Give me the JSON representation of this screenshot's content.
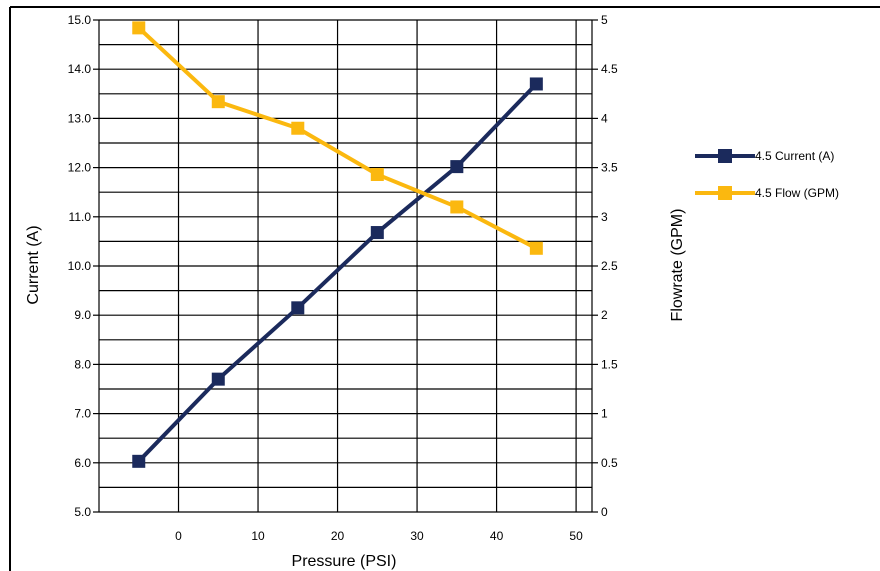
{
  "chart_data": {
    "type": "line",
    "title": "",
    "xlabel": "Pressure (PSI)",
    "ylabel": "Current (A)",
    "y2label": "Flowrate (GPM)",
    "xlim": [
      -10,
      52
    ],
    "ylim": [
      5.0,
      15.0
    ],
    "y2lim": [
      0,
      5
    ],
    "x_ticks": [
      "0",
      "10",
      "20",
      "30",
      "40",
      "50"
    ],
    "y_ticks": [
      "5.0",
      "6.0",
      "7.0",
      "8.0",
      "9.0",
      "10.0",
      "11.0",
      "12.0",
      "13.0",
      "14.0",
      "15.0"
    ],
    "y2_ticks": [
      "0",
      "0.5",
      "1",
      "1.5",
      "2",
      "2.5",
      "3",
      "3.5",
      "4",
      "4.5",
      "5"
    ],
    "grid": true,
    "legend_position": "right",
    "series": [
      {
        "name": "4.5 Current (A)",
        "axis": "left",
        "color": "#1b2a5c",
        "marker": "square",
        "x": [
          -5,
          5,
          15,
          25,
          35,
          45
        ],
        "y": [
          6.03,
          7.7,
          9.15,
          10.68,
          12.02,
          13.7
        ]
      },
      {
        "name": "4.5 Flow (GPM)",
        "axis": "right",
        "color": "#fbb80f",
        "marker": "square",
        "x": [
          -5,
          5,
          15,
          25,
          35,
          45
        ],
        "y": [
          4.92,
          4.17,
          3.9,
          3.43,
          3.1,
          2.68
        ]
      }
    ]
  }
}
